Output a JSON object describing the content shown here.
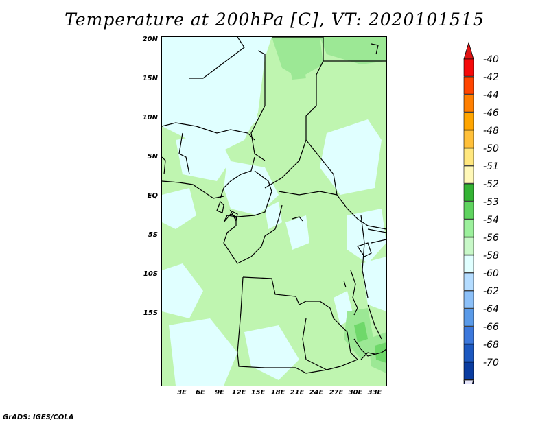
{
  "title": "Temperature at 200hPa [C], VT: 2020101515",
  "footer": "GrADS: IGES/COLA",
  "lat_labels": [
    "20N",
    "15N",
    "10N",
    "5N",
    "EQ",
    "5S",
    "10S",
    "15S"
  ],
  "lon_labels": [
    "3E",
    "6E",
    "9E",
    "12E",
    "15E",
    "18E",
    "21E",
    "24E",
    "27E",
    "30E",
    "33E"
  ],
  "colorbar": {
    "labels": [
      "-40",
      "-42",
      "-44",
      "-46",
      "-48",
      "-50",
      "-51",
      "-52",
      "-53",
      "-54",
      "-56",
      "-58",
      "-60",
      "-62",
      "-64",
      "-66",
      "-68",
      "-70"
    ],
    "colors": [
      "#f50a0a",
      "#ff4500",
      "#ff7f00",
      "#ffa500",
      "#ffc03a",
      "#ffe77e",
      "#fff8b8",
      "#34b334",
      "#5fd35f",
      "#9cf09c",
      "#c8f8c8",
      "#e0ffff",
      "#b4dcff",
      "#8cc0f8",
      "#5a9ae8",
      "#3c78dc",
      "#1c58c0",
      "#0a3ca0",
      "#061a6e"
    ],
    "top_arrow_color": "#e01414",
    "bottom_arrow_color": "#e6e6fa"
  },
  "map_colors": {
    "base": "#bff5b0",
    "cold": "#e0ffff",
    "warm": "#9ce895",
    "warmer": "#6fd86a",
    "border": "#000000"
  }
}
